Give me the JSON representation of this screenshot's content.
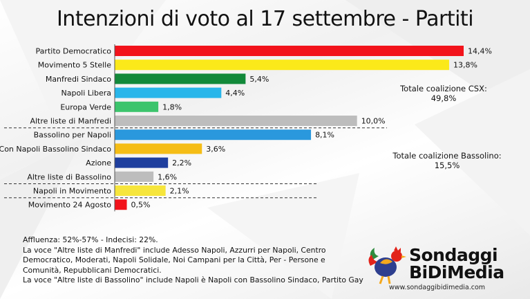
{
  "title": "Intenzioni di voto al 17 settembre - Partiti",
  "chart_data": {
    "type": "bar",
    "orientation": "horizontal",
    "categories": [
      "Partito Democratico",
      "Movimento 5 Stelle",
      "Manfredi Sindaco",
      "Napoli Libera",
      "Europa Verde",
      "Altre liste di Manfredi",
      "Bassolino per Napoli",
      "Con Napoli Bassolino Sindaco",
      "Azione",
      "Altre liste di Bassolino",
      "Napoli in Movimento",
      "Movimento 24 Agosto"
    ],
    "values": [
      14.4,
      13.8,
      5.4,
      4.4,
      1.8,
      10.0,
      8.1,
      3.6,
      2.2,
      1.6,
      2.1,
      0.5
    ],
    "value_labels": [
      "14,4%",
      "13,8%",
      "5,4%",
      "4,4%",
      "1,8%",
      "10,0%",
      "8,1%",
      "3,6%",
      "2,2%",
      "1,6%",
      "2,1%",
      "0,5%"
    ],
    "colors": [
      "#f2131b",
      "#fbe91a",
      "#12893a",
      "#29b6ea",
      "#3cc46c",
      "#bdbdbd",
      "#2a98dd",
      "#f5bd16",
      "#1f3f9e",
      "#bdbdbd",
      "#f6e53c",
      "#f2131b"
    ],
    "group_separators_after": [
      "Altre liste di Manfredi",
      "Altre liste di Bassolino",
      "Napoli in Movimento"
    ],
    "xlim": [
      0,
      14.4
    ],
    "grid": false,
    "legend": "none"
  },
  "notes": {
    "csx_label": "Totale coalizione CSX:",
    "csx_value": "49,8%",
    "bassolino_label": "Totale coalizione Bassolino:",
    "bassolino_value": "15,5%"
  },
  "footnotes": [
    "Affluenza: 52%-57% - Indecisi: 22%.",
    "La voce \"Altre liste di Manfredi\" include Adesso Napoli, Azzurri per Napoli, Centro",
    "Democratico, Moderati, Napoli Solidale, Noi Campani per la Città, Per - Persone e",
    "Comunità, Repubblicani Democratici.",
    "La voce \"Altre liste di Bassolino\" include Napoli è Napoli con Bassolino Sindaco, Partito Gay"
  ],
  "logo": {
    "line1": "Sondaggi",
    "line2": "BiDiMedia",
    "url": "www.sondaggibidimedia.com",
    "icon": "rooster-logo-icon"
  }
}
